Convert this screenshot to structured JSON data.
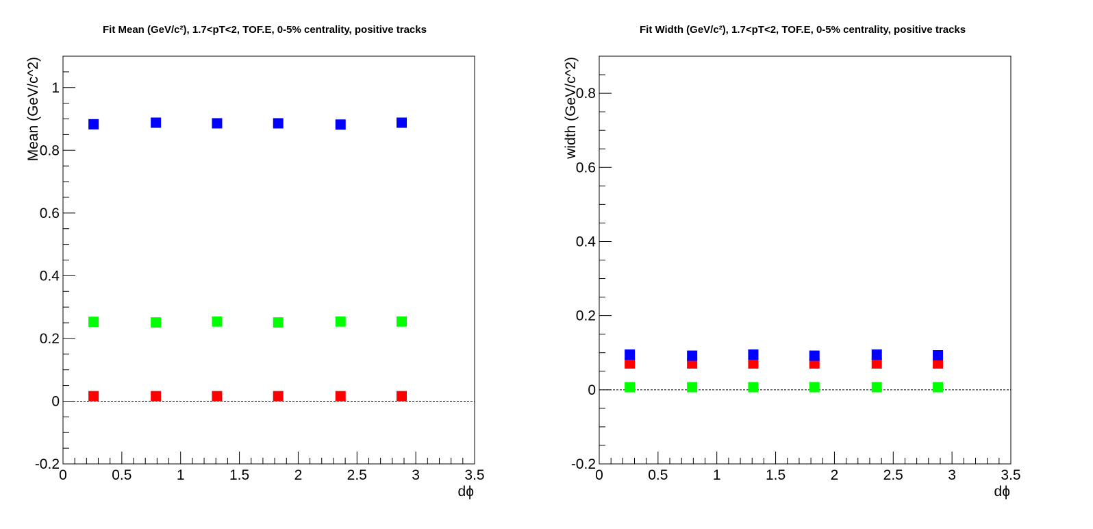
{
  "colors": {
    "blue": "#0000ff",
    "green": "#00ff00",
    "red": "#ff0000",
    "frame": "#000000"
  },
  "chart_data": [
    {
      "type": "scatter",
      "title": "Fit Mean (GeV/c²), 1.7<pT<2, TOF.E, 0-5% centrality, positive tracks",
      "xlabel": "dϕ",
      "ylabel": "Mean (GeV/c^2)",
      "xlim": [
        0,
        3.5
      ],
      "ylim": [
        -0.2,
        1.1
      ],
      "x_ticks": [
        "0",
        "0.5",
        "1",
        "1.5",
        "2",
        "2.5",
        "3",
        "3.5"
      ],
      "y_ticks": [
        "-0.2",
        "0",
        "0.2",
        "0.4",
        "0.6",
        "0.8",
        "1"
      ],
      "x": [
        0.26,
        0.79,
        1.31,
        1.83,
        2.36,
        2.88
      ],
      "series": [
        {
          "color": "#0000ff",
          "values": [
            0.883,
            0.888,
            0.886,
            0.886,
            0.882,
            0.888
          ]
        },
        {
          "color": "#00ff00",
          "values": [
            0.253,
            0.251,
            0.254,
            0.251,
            0.254,
            0.254
          ]
        },
        {
          "color": "#ff0000",
          "values": [
            0.016,
            0.016,
            0.016,
            0.016,
            0.016,
            0.016
          ]
        }
      ],
      "zero_line": true,
      "grid": false
    },
    {
      "type": "scatter",
      "title": "Fit Width (GeV/c²), 1.7<pT<2, TOF.E, 0-5% centrality, positive tracks",
      "xlabel": "dϕ",
      "ylabel": "width (GeV/c^2)",
      "xlim": [
        0,
        3.5
      ],
      "ylim": [
        -0.2,
        0.9
      ],
      "x_ticks": [
        "0",
        "0.5",
        "1",
        "1.5",
        "2",
        "2.5",
        "3",
        "3.5"
      ],
      "y_ticks": [
        "-0.2",
        "0",
        "0.2",
        "0.4",
        "0.6",
        "0.8"
      ],
      "x": [
        0.26,
        0.79,
        1.31,
        1.83,
        2.36,
        2.88
      ],
      "series": [
        {
          "color": "#ff0000",
          "values": [
            0.071,
            0.071,
            0.071,
            0.071,
            0.071,
            0.071
          ]
        },
        {
          "color": "#0000ff",
          "values": [
            0.095,
            0.092,
            0.095,
            0.092,
            0.095,
            0.093
          ]
        },
        {
          "color": "#00ff00",
          "values": [
            0.007,
            0.007,
            0.007,
            0.007,
            0.007,
            0.007
          ]
        }
      ],
      "zero_line": true,
      "grid": false
    }
  ]
}
